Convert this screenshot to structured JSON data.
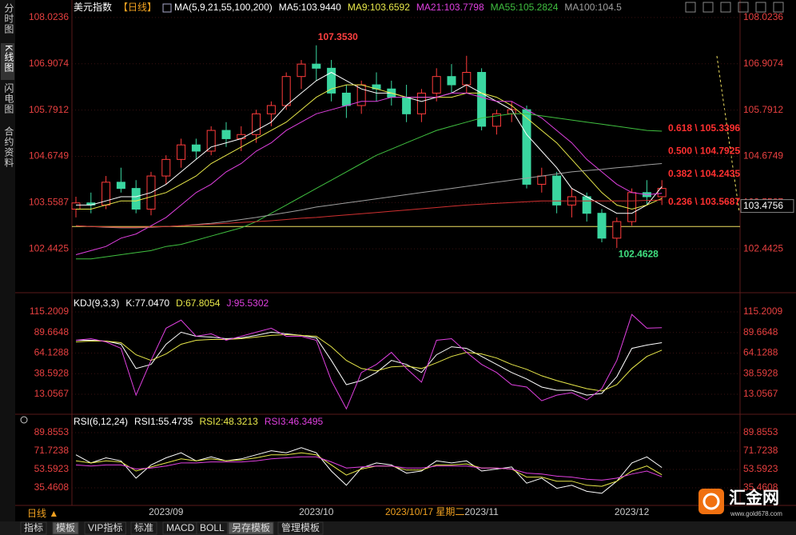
{
  "sidebar": [
    "分时图",
    "K线图",
    "闪电图",
    "合约资料"
  ],
  "toolbar": [
    "指标",
    "模板",
    "VIP指标",
    "标准",
    "MACD",
    "BOLL",
    "另存模板",
    "管理模板"
  ],
  "period": "日线 ▲",
  "cursor_label": "2023/10/17 星期二",
  "logo": {
    "name": "汇金网",
    "url": "www.gold678.com"
  },
  "chart_data": [
    {
      "type": "candlestick",
      "title": "美元指数",
      "period_tag": "【日线】",
      "indicator": "MA(5,9,21,55,100,200)",
      "categories": [
        null,
        null,
        null,
        null,
        null,
        null,
        "2023/09",
        null,
        null,
        null,
        null,
        null,
        null,
        null,
        null,
        null,
        "2023/10",
        null,
        null,
        null,
        null,
        null,
        null,
        null,
        null,
        null,
        null,
        "2023/11",
        null,
        null,
        null,
        null,
        null,
        null,
        null,
        null,
        null,
        "2023/12",
        null,
        null
      ],
      "open": [
        103.4,
        103.55,
        103.5,
        104.05,
        103.9,
        103.4,
        104.2,
        104.6,
        104.95,
        104.8,
        105.3,
        105.1,
        105.2,
        105.7,
        105.9,
        106.6,
        106.9,
        106.8,
        106.2,
        105.9,
        106.4,
        106.3,
        106.1,
        105.7,
        106.2,
        106.6,
        106.4,
        106.7,
        105.4,
        105.7,
        105.8,
        104.0,
        104.2,
        103.5,
        103.7,
        103.3,
        102.7,
        103.1,
        103.8,
        103.7
      ],
      "high": [
        103.7,
        103.8,
        104.2,
        104.4,
        104.1,
        104.3,
        104.7,
        105.1,
        105.1,
        105.4,
        105.5,
        105.4,
        105.8,
        106.0,
        106.7,
        107.0,
        107.353,
        107.0,
        106.4,
        106.5,
        106.7,
        106.5,
        106.4,
        106.3,
        106.8,
        106.9,
        107.1,
        106.8,
        105.8,
        106.0,
        105.9,
        104.4,
        104.3,
        103.9,
        103.8,
        103.4,
        103.2,
        103.9,
        104.1,
        104.1
      ],
      "low": [
        103.2,
        103.3,
        103.4,
        103.8,
        103.3,
        103.25,
        104.0,
        104.4,
        104.6,
        104.7,
        104.9,
        104.8,
        105.0,
        105.4,
        105.8,
        106.3,
        106.5,
        106.0,
        105.6,
        105.7,
        106.0,
        105.9,
        105.5,
        105.5,
        106.0,
        106.2,
        106.2,
        105.3,
        105.2,
        105.5,
        103.9,
        103.8,
        103.3,
        103.2,
        103.1,
        102.6,
        102.4628,
        103.0,
        103.5,
        103.5
      ],
      "close": [
        103.55,
        103.5,
        104.05,
        103.9,
        103.4,
        104.2,
        104.6,
        104.95,
        104.8,
        105.3,
        105.1,
        105.2,
        105.7,
        105.9,
        106.6,
        106.9,
        106.8,
        106.2,
        105.9,
        106.4,
        106.3,
        106.1,
        105.7,
        106.2,
        106.6,
        106.4,
        106.7,
        105.4,
        105.7,
        105.8,
        104.0,
        104.2,
        103.5,
        103.7,
        103.3,
        102.7,
        103.1,
        103.8,
        103.7,
        103.9
      ],
      "up_color": "#ff3b3b",
      "down_color": "#3ad6a0",
      "series": [
        {
          "name": "MA5:103.9440",
          "color": "#ffffff",
          "values": [
            103.5,
            103.5,
            103.6,
            103.7,
            103.7,
            103.8,
            104.0,
            104.3,
            104.6,
            104.9,
            105.0,
            105.1,
            105.3,
            105.5,
            105.9,
            106.2,
            106.5,
            106.7,
            106.5,
            106.3,
            106.2,
            106.2,
            106.1,
            106.0,
            106.1,
            106.2,
            106.4,
            106.2,
            106.0,
            105.8,
            105.2,
            104.8,
            104.4,
            103.9,
            103.7,
            103.5,
            103.3,
            103.3,
            103.5,
            103.944
          ]
        },
        {
          "name": "MA9:103.6592",
          "color": "#e8e84a",
          "values": [
            103.4,
            103.4,
            103.5,
            103.6,
            103.6,
            103.7,
            103.8,
            104.0,
            104.2,
            104.5,
            104.7,
            104.9,
            105.1,
            105.3,
            105.5,
            105.8,
            106.1,
            106.3,
            106.4,
            106.4,
            106.3,
            106.2,
            106.1,
            106.1,
            106.1,
            106.1,
            106.2,
            106.2,
            106.1,
            105.9,
            105.6,
            105.3,
            105.0,
            104.6,
            104.2,
            103.8,
            103.5,
            103.4,
            103.5,
            103.6592
          ]
        },
        {
          "name": "MA21:103.7798",
          "color": "#e040e0",
          "values": [
            102.3,
            102.4,
            102.5,
            102.7,
            102.8,
            103.0,
            103.2,
            103.5,
            103.8,
            104.0,
            104.3,
            104.5,
            104.8,
            105.0,
            105.3,
            105.5,
            105.7,
            105.8,
            105.9,
            106.0,
            106.0,
            106.1,
            106.1,
            106.1,
            106.1,
            106.2,
            106.2,
            106.1,
            106.0,
            106.0,
            105.8,
            105.6,
            105.3,
            105.0,
            104.6,
            104.3,
            104.0,
            103.8,
            103.75,
            103.7798
          ]
        },
        {
          "name": "MA55:105.2824",
          "color": "#40c040",
          "values": [
            102.2,
            102.2,
            102.25,
            102.3,
            102.35,
            102.4,
            102.5,
            102.55,
            102.65,
            102.75,
            102.85,
            102.95,
            103.1,
            103.3,
            103.5,
            103.7,
            103.9,
            104.1,
            104.3,
            104.5,
            104.7,
            104.85,
            105.0,
            105.15,
            105.3,
            105.4,
            105.5,
            105.6,
            105.65,
            105.7,
            105.7,
            105.65,
            105.6,
            105.55,
            105.5,
            105.45,
            105.4,
            105.35,
            105.3,
            105.2824
          ]
        },
        {
          "name": "MA100:104.5",
          "color": "#a0a0a0",
          "values": [
            103.0,
            102.98,
            102.96,
            102.95,
            102.95,
            102.96,
            102.98,
            103.0,
            103.03,
            103.06,
            103.1,
            103.15,
            103.2,
            103.26,
            103.32,
            103.38,
            103.45,
            103.5,
            103.55,
            103.6,
            103.65,
            103.7,
            103.75,
            103.8,
            103.85,
            103.9,
            103.95,
            104.0,
            104.05,
            104.1,
            104.15,
            104.2,
            104.25,
            104.3,
            104.33,
            104.36,
            104.4,
            104.43,
            104.47,
            104.5
          ]
        },
        {
          "color": "#d03030",
          "values": [
            103.0,
            102.98,
            102.97,
            102.96,
            102.96,
            102.97,
            102.98,
            103.0,
            103.02,
            103.04,
            103.06,
            103.08,
            103.1,
            103.12,
            103.15,
            103.18,
            103.2,
            103.23,
            103.26,
            103.29,
            103.32,
            103.35,
            103.38,
            103.41,
            103.44,
            103.47,
            103.5,
            103.52,
            103.54,
            103.56,
            103.58,
            103.6,
            103.6,
            103.6,
            103.6,
            103.6,
            103.6,
            103.6,
            103.61,
            103.62
          ]
        }
      ],
      "ylim": [
        101.5,
        108.35
      ],
      "yticks": [
        102.4425,
        103.5587,
        104.6749,
        105.7912,
        106.9074,
        108.0236
      ],
      "reference_line": {
        "value": 102.98,
        "color": "#f0e060"
      },
      "fib_levels": [
        {
          "value": 105.3396,
          "label": "0.618 \\ 105.3396"
        },
        {
          "value": 104.7925,
          "label": "0.500 \\ 104.7925"
        },
        {
          "value": 104.2435,
          "label": "0.382 \\ 104.2435"
        },
        {
          "value": 103.5687,
          "label": "0.236 \\ 103.5687"
        }
      ],
      "annotations": [
        {
          "value": 107.353,
          "label": "107.3530",
          "color": "#ff4040"
        },
        {
          "value": 102.4628,
          "label": "102.4628",
          "color": "#40e080"
        }
      ],
      "last_price": 103.4756
    },
    {
      "type": "line",
      "title": "KDJ(9,3,3)",
      "series": [
        {
          "name": "K:77.0470",
          "color": "#ffffff",
          "values": [
            80,
            80,
            79,
            75,
            45,
            50,
            75,
            90,
            85,
            84,
            82,
            83,
            86,
            90,
            88,
            86,
            83,
            55,
            25,
            30,
            40,
            55,
            50,
            40,
            62,
            72,
            70,
            60,
            50,
            40,
            32,
            22,
            18,
            18,
            12,
            14,
            35,
            70,
            74,
            77.047
          ]
        },
        {
          "name": "D:67.8054",
          "color": "#e8e84a",
          "values": [
            78,
            79,
            79,
            77,
            62,
            55,
            63,
            75,
            80,
            81,
            81,
            82,
            84,
            86,
            87,
            86,
            85,
            72,
            55,
            45,
            42,
            47,
            48,
            45,
            52,
            60,
            65,
            63,
            58,
            50,
            44,
            36,
            30,
            25,
            20,
            17,
            25,
            45,
            60,
            67.8054
          ]
        },
        {
          "name": "J:95.5302",
          "color": "#e040e0",
          "values": [
            80,
            82,
            78,
            70,
            12,
            55,
            95,
            105,
            85,
            88,
            80,
            85,
            90,
            95,
            85,
            85,
            80,
            30,
            -5,
            40,
            50,
            65,
            45,
            28,
            80,
            82,
            65,
            50,
            40,
            25,
            22,
            5,
            12,
            15,
            6,
            20,
            55,
            112,
            95,
            95.5302
          ]
        }
      ],
      "ylim": [
        -8.76,
        133.05
      ],
      "yticks": [
        13.0567,
        38.5928,
        64.1288,
        89.6648,
        115.2009
      ]
    },
    {
      "type": "line",
      "title": "RSI(6,12,24)",
      "series": [
        {
          "name": "RSI1:55.4735",
          "color": "#ffffff",
          "values": [
            68,
            60,
            65,
            62,
            45,
            58,
            65,
            70,
            62,
            66,
            62,
            64,
            68,
            72,
            70,
            75,
            70,
            52,
            38,
            55,
            60,
            58,
            50,
            52,
            62,
            60,
            62,
            52,
            54,
            56,
            40,
            45,
            35,
            38,
            32,
            30,
            42,
            60,
            66,
            55.4735
          ]
        },
        {
          "name": "RSI2:48.3213",
          "color": "#e8e84a",
          "values": [
            62,
            60,
            62,
            61,
            52,
            56,
            60,
            64,
            62,
            64,
            62,
            63,
            65,
            68,
            68,
            70,
            68,
            58,
            48,
            54,
            57,
            57,
            53,
            53,
            58,
            58,
            59,
            55,
            55,
            54,
            46,
            46,
            42,
            42,
            38,
            37,
            42,
            52,
            57,
            48.3213
          ]
        },
        {
          "name": "RSI3:46.3495",
          "color": "#e040e0",
          "values": [
            58,
            57,
            58,
            58,
            54,
            55,
            57,
            60,
            60,
            61,
            61,
            61,
            62,
            64,
            65,
            66,
            66,
            61,
            55,
            56,
            57,
            57,
            55,
            55,
            57,
            57,
            57,
            55,
            55,
            54,
            50,
            49,
            47,
            46,
            44,
            43,
            45,
            49,
            52,
            46.3495
          ]
        }
      ],
      "ylim": [
        19.7,
        104.83
      ],
      "yticks": [
        35.4608,
        53.5923,
        71.7238,
        89.8553
      ]
    }
  ]
}
